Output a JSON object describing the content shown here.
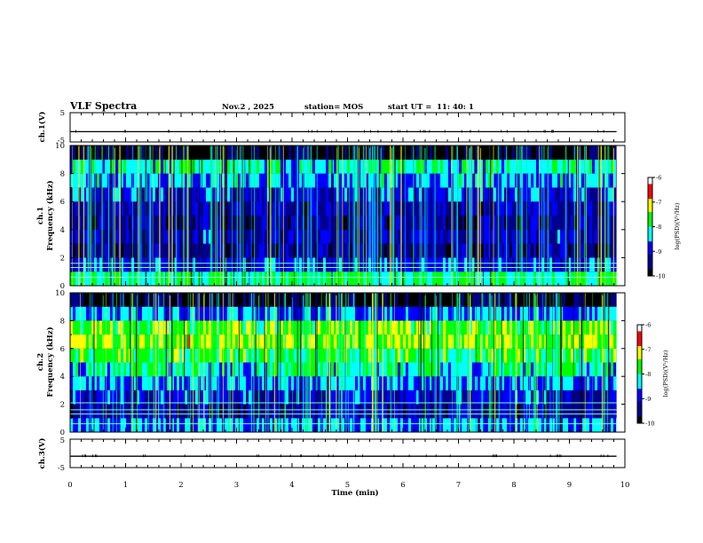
{
  "header": {
    "title": "VLF Spectra",
    "date": "Nov.2 , 2025",
    "station": "station= MOS",
    "start_label": "start UT =",
    "start_time": "11: 40: 1"
  },
  "chart_data": [
    {
      "type": "line",
      "panel": "ch1-voltage",
      "ylabel": "ch.1(V)",
      "ylim": [
        -5,
        5
      ],
      "yticks": [
        "5",
        "-5"
      ],
      "x": [
        0,
        1,
        2,
        3,
        4,
        5,
        6,
        7,
        8,
        9,
        9.85
      ],
      "values": [
        -1.5,
        -1.5,
        -1.5,
        -1.5,
        -1.5,
        -1.5,
        -1.5,
        -1.5,
        -1.5,
        -1.5,
        -1.5
      ]
    },
    {
      "type": "heatmap",
      "panel": "ch1-spectrogram",
      "ylabel": "ch.1 Frequency (kHz)",
      "ylabel_channel": "ch.1",
      "ylabel_quantity": "Frequency (kHz)",
      "ylim": [
        0,
        10
      ],
      "yticks": [
        "0",
        "2",
        "4",
        "6",
        "8",
        "10"
      ],
      "colorbar": {
        "label": "log(PSD)(V²/Hz)",
        "range": [
          -10,
          -6
        ],
        "ticks": [
          "-6",
          "-7",
          "-8",
          "-9",
          "-10"
        ],
        "colormap": [
          "#ffffff",
          "#ff0000",
          "#ffff00",
          "#00ff00",
          "#00ffff",
          "#0000ff",
          "#00008b",
          "#000000"
        ]
      },
      "frequency_khz": [
        0.5,
        1.5,
        2.5,
        3.5,
        4.5,
        5.5,
        6.5,
        7.5,
        8.5,
        9.5
      ],
      "mean_log_psd": [
        -8.0,
        -8.9,
        -9.3,
        -9.1,
        -9.3,
        -9.2,
        -8.9,
        -8.5,
        -8.2,
        -9.9
      ],
      "bright_lines_khz": [
        0.6,
        1.3,
        1.6
      ]
    },
    {
      "type": "heatmap",
      "panel": "ch2-spectrogram",
      "ylabel": "ch.2 Frequency (kHz)",
      "ylabel_channel": "ch.2",
      "ylabel_quantity": "Frequency (kHz)",
      "ylim": [
        0,
        10
      ],
      "yticks": [
        "0",
        "2",
        "4",
        "6",
        "8",
        "10"
      ],
      "colorbar": {
        "label": "log(PSD)(V²/Hz)",
        "range": [
          -10,
          -6
        ],
        "ticks": [
          "-6",
          "-7",
          "-8",
          "-9",
          "-10"
        ],
        "colormap": [
          "#ffffff",
          "#ff0000",
          "#ffff00",
          "#00ff00",
          "#00ffff",
          "#0000ff",
          "#00008b",
          "#000000"
        ]
      },
      "frequency_khz": [
        0.5,
        1.5,
        2.5,
        3.5,
        4.5,
        5.5,
        6.5,
        7.5,
        8.5,
        9.5
      ],
      "mean_log_psd": [
        -8.6,
        -9.3,
        -9.0,
        -8.6,
        -8.2,
        -7.8,
        -7.4,
        -7.6,
        -8.6,
        -9.9
      ],
      "bright_lines_khz": [
        0.6,
        1.3,
        1.6,
        2.1
      ]
    },
    {
      "type": "line",
      "panel": "ch3-voltage",
      "ylabel": "ch.3(V)",
      "ylim": [
        -5,
        5
      ],
      "yticks": [
        "5",
        "-5"
      ],
      "x": [
        0,
        1,
        2,
        3,
        4,
        5,
        6,
        7,
        8,
        9,
        9.85
      ],
      "values": [
        -1.0,
        -1.0,
        -1.0,
        -1.0,
        -1.0,
        -1.0,
        -1.0,
        -1.0,
        -1.0,
        -1.0,
        -1.0
      ]
    }
  ],
  "time_axis": {
    "xlabel": "Time (min)",
    "xlim": [
      0,
      10
    ],
    "data_end_min": 9.85,
    "ticks": [
      "0",
      "1",
      "2",
      "3",
      "4",
      "5",
      "6",
      "7",
      "8",
      "9",
      "10"
    ]
  }
}
